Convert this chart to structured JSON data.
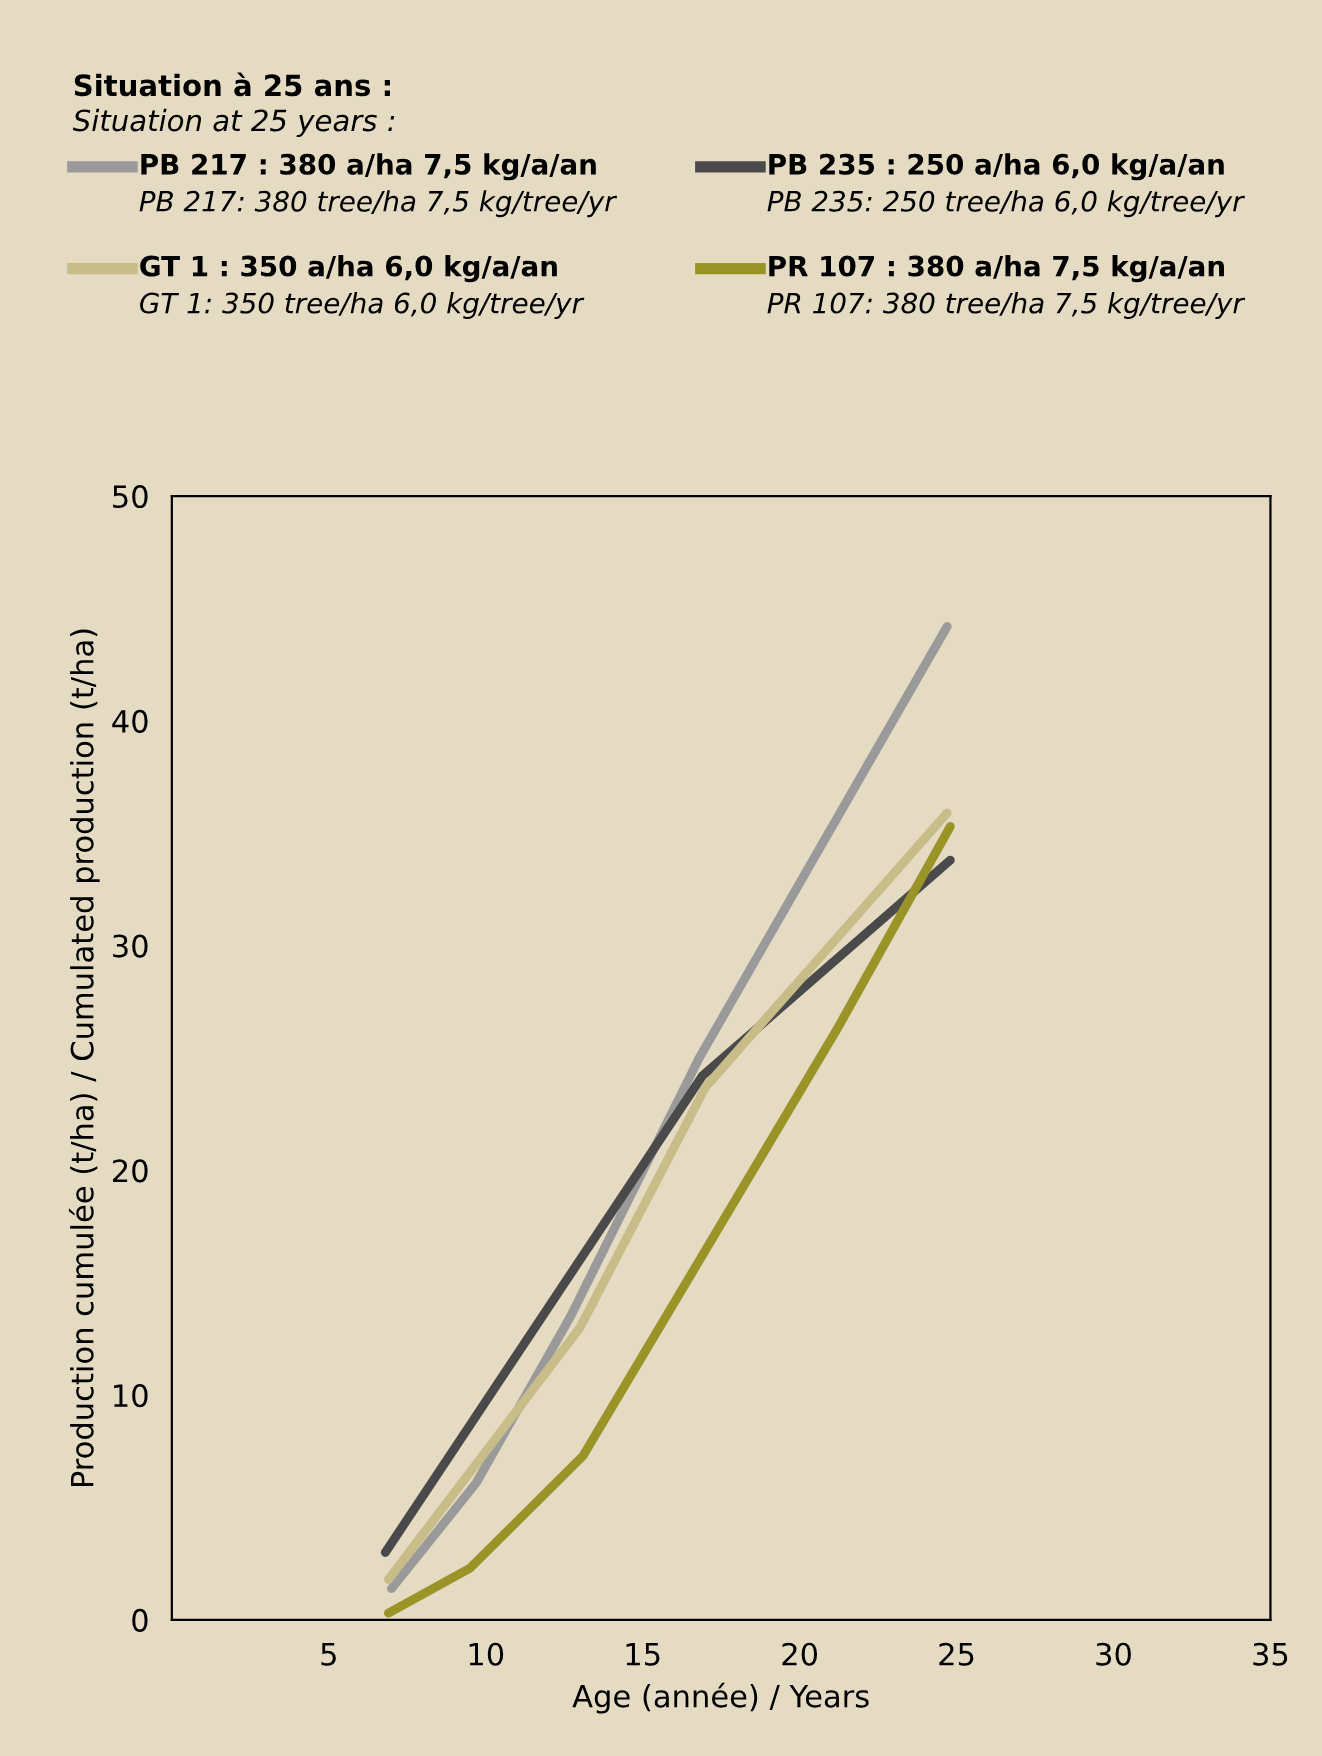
{
  "chart_data": {
    "type": "line",
    "title": "Situation à 25 ans :",
    "subtitle": "Situation at 25 years :",
    "xlabel": "Age (année) / Years",
    "ylabel": "Production cumulée (t/ha) / Cumulated production (t/ha)",
    "xlim": [
      0,
      35
    ],
    "xticks": [
      5,
      10,
      15,
      20,
      25,
      30,
      35
    ],
    "ylim": [
      0,
      50
    ],
    "yticks": [
      0,
      10,
      20,
      30,
      40,
      50
    ],
    "grid": false,
    "legend": "top",
    "marker": "none",
    "line_style": "solid",
    "series": [
      {
        "name": "PB 217 : 380 a/ha 7,5 kg/a/an\nPB 217: 380 tree/ha 7,5 kg/tree/yr",
        "color": "#9a9a9a",
        "x": [
          7,
          9.7,
          12.7,
          16.8,
          24.7
        ],
        "values": [
          1.4,
          6.1,
          13.5,
          25,
          44.2
        ]
      },
      {
        "name": "PB 235 : 250 a/ha 6,0 kg/a/an\nPB 235: 250 tree/ha 6,0 kg/tree/yr",
        "color": "#4a4a4a",
        "x": [
          6.8,
          16.9,
          24.8
        ],
        "values": [
          3.0,
          24.2,
          33.8
        ]
      },
      {
        "name": "GT 1 : 350 a/ha 6,0 kg/a/an\nGT 1: 350 tree/ha 6,0 kg/tree/yr",
        "color": "#c8bc88",
        "x": [
          6.9,
          13,
          17,
          24.7
        ],
        "values": [
          1.8,
          13,
          23.7,
          35.9
        ]
      },
      {
        "name": "PR 107 : 380 a/ha 7,5 kg/a/an\nPR 107: 380 tree/ha 7,5 kg/tree/yr",
        "color": "#9a9428",
        "x": [
          6.9,
          9.5,
          13.1,
          21.2,
          24.8
        ],
        "values": [
          0.3,
          2.3,
          7.3,
          26.3,
          35.3
        ]
      }
    ]
  }
}
